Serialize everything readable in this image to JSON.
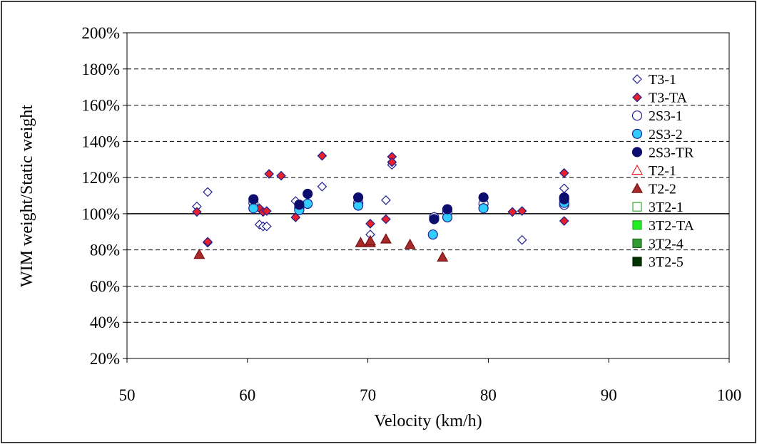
{
  "chart_data": {
    "type": "scatter",
    "title": "",
    "xlabel": "Velocity (km/h)",
    "ylabel": "WIM weight/Static weight",
    "xlim": [
      50,
      100
    ],
    "ylim": [
      0.2,
      2.0
    ],
    "x_ticks": [
      50,
      60,
      70,
      80,
      90,
      100
    ],
    "x_tick_labels": [
      "50",
      "60",
      "70",
      "80",
      "90",
      "100"
    ],
    "y_ticks": [
      0.2,
      0.4,
      0.6,
      0.8,
      1.0,
      1.2,
      1.4,
      1.6,
      1.8,
      2.0
    ],
    "y_tick_labels": [
      "20%",
      "40%",
      "60%",
      "80%",
      "100%",
      "120%",
      "140%",
      "160%",
      "180%",
      "200%"
    ],
    "grid": "horizontal dashed",
    "reference_line": 1.0,
    "legend_position": "right",
    "series": [
      {
        "name": "T3-1",
        "marker": "diamond",
        "fill": "#ffffff",
        "stroke": "#1f1f8f",
        "points": [
          [
            55.8,
            1.04
          ],
          [
            56.7,
            1.12
          ],
          [
            56.7,
            0.84
          ],
          [
            61.0,
            0.94
          ],
          [
            61.3,
            0.93
          ],
          [
            61.6,
            0.93
          ],
          [
            64.0,
            1.07
          ],
          [
            66.2,
            1.15
          ],
          [
            70.2,
            0.885
          ],
          [
            71.5,
            1.075
          ],
          [
            72.0,
            1.27
          ],
          [
            82.8,
            0.855
          ],
          [
            86.3,
            1.14
          ],
          [
            86.3,
            1.07
          ]
        ]
      },
      {
        "name": "T3-TA",
        "marker": "diamond",
        "fill": "#e8202a",
        "stroke": "#1f1f8f",
        "points": [
          [
            55.8,
            1.01
          ],
          [
            56.7,
            0.845
          ],
          [
            61.0,
            1.03
          ],
          [
            61.3,
            1.01
          ],
          [
            61.6,
            1.015
          ],
          [
            61.8,
            1.22
          ],
          [
            62.8,
            1.21
          ],
          [
            64.0,
            0.98
          ],
          [
            66.2,
            1.32
          ],
          [
            70.2,
            0.945
          ],
          [
            71.5,
            0.97
          ],
          [
            72.0,
            1.315
          ],
          [
            72.0,
            1.285
          ],
          [
            82.0,
            1.01
          ],
          [
            82.8,
            1.015
          ],
          [
            86.3,
            1.225
          ],
          [
            86.3,
            0.96
          ]
        ]
      },
      {
        "name": "2S3-1",
        "marker": "circle",
        "fill": "#ffffff",
        "stroke": "#1f1f8f",
        "points": [
          [
            60.5,
            1.06
          ],
          [
            64.3,
            1.03
          ],
          [
            69.2,
            1.06
          ],
          [
            75.5,
            0.98
          ],
          [
            76.6,
            1.01
          ],
          [
            79.6,
            1.055
          ],
          [
            86.3,
            1.05
          ]
        ]
      },
      {
        "name": "2S3-2",
        "marker": "circle",
        "fill": "#33ccff",
        "stroke": "#1f1f8f",
        "points": [
          [
            60.5,
            1.03
          ],
          [
            64.3,
            1.02
          ],
          [
            65.0,
            1.055
          ],
          [
            69.2,
            1.045
          ],
          [
            75.4,
            0.885
          ],
          [
            76.6,
            0.98
          ],
          [
            79.6,
            1.03
          ],
          [
            86.3,
            1.06
          ]
        ]
      },
      {
        "name": "2S3-TR",
        "marker": "circle",
        "fill": "#0d0d6e",
        "stroke": "#0d0d6e",
        "points": [
          [
            60.5,
            1.08
          ],
          [
            64.3,
            1.05
          ],
          [
            65.0,
            1.11
          ],
          [
            69.2,
            1.09
          ],
          [
            75.5,
            0.97
          ],
          [
            76.6,
            1.025
          ],
          [
            79.6,
            1.09
          ],
          [
            86.3,
            1.09
          ],
          [
            86.3,
            1.08
          ]
        ]
      },
      {
        "name": "T2-1",
        "marker": "triangle",
        "fill": "#ffffff",
        "stroke": "#e8202a",
        "points": []
      },
      {
        "name": "T2-2",
        "marker": "triangle",
        "fill": "#a52a2a",
        "stroke": "#7a1010",
        "points": [
          [
            56.0,
            0.775
          ],
          [
            69.4,
            0.84
          ],
          [
            70.2,
            0.84
          ],
          [
            70.2,
            0.85
          ],
          [
            71.5,
            0.86
          ],
          [
            73.5,
            0.83
          ],
          [
            76.2,
            0.76
          ]
        ]
      },
      {
        "name": "3T2-1",
        "marker": "square",
        "fill": "#ffffff",
        "stroke": "#33aa33",
        "points": []
      },
      {
        "name": "3T2-TA",
        "marker": "square",
        "fill": "#22ee22",
        "stroke": "#22aa22",
        "points": []
      },
      {
        "name": "3T2-4",
        "marker": "square",
        "fill": "#339933",
        "stroke": "#226622",
        "points": []
      },
      {
        "name": "3T2-5",
        "marker": "square",
        "fill": "#003300",
        "stroke": "#002200",
        "points": []
      }
    ]
  }
}
